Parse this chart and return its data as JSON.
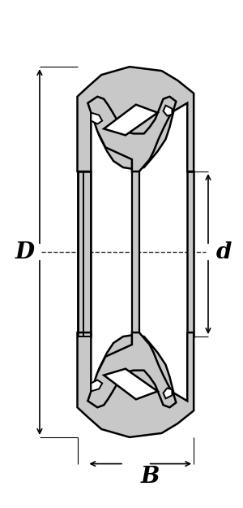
{
  "background_color": "#ffffff",
  "gray": "#c8c8c8",
  "black": "#000000",
  "label_D": "D",
  "label_d": "d",
  "label_B": "B",
  "label_fontsize": 20,
  "figsize": [
    3.0,
    6.25
  ],
  "dpi": 100
}
